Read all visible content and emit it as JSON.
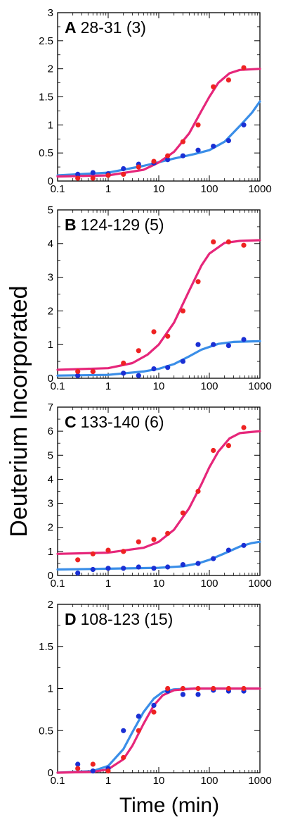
{
  "figure": {
    "ylabel": "Deuterium Incorporated",
    "xlabel": "Time (min)"
  },
  "chart_data": [
    {
      "type": "scatter",
      "panel_letter": "A",
      "panel_text": "28-31 (3)",
      "x_scale": "log",
      "xlim": [
        0.1,
        1000
      ],
      "ylim": [
        0,
        3
      ],
      "x_ticks": [
        "0.1",
        "1",
        "10",
        "100",
        "1000"
      ],
      "y_ticks": [
        "0",
        "0.5",
        "1",
        "1.5",
        "2",
        "2.5",
        "3"
      ],
      "series": [
        {
          "color": "#e6267a",
          "points": [
            [
              0.25,
              0.05
            ],
            [
              0.5,
              0.05
            ],
            [
              1,
              0.1
            ],
            [
              2,
              0.12
            ],
            [
              4,
              0.25
            ],
            [
              8,
              0.35
            ],
            [
              15,
              0.45
            ],
            [
              30,
              0.7
            ],
            [
              60,
              1.0
            ],
            [
              120,
              1.68
            ],
            [
              240,
              1.8
            ],
            [
              480,
              2.02
            ]
          ],
          "fit": [
            [
              0.1,
              0.08
            ],
            [
              1,
              0.1
            ],
            [
              5,
              0.2
            ],
            [
              10,
              0.33
            ],
            [
              20,
              0.52
            ],
            [
              40,
              0.85
            ],
            [
              70,
              1.25
            ],
            [
              100,
              1.5
            ],
            [
              150,
              1.75
            ],
            [
              250,
              1.92
            ],
            [
              400,
              1.98
            ],
            [
              1000,
              2.0
            ]
          ]
        },
        {
          "color": "#3a8ee8",
          "points": [
            [
              0.25,
              0.12
            ],
            [
              0.5,
              0.15
            ],
            [
              1,
              0.13
            ],
            [
              2,
              0.22
            ],
            [
              4,
              0.3
            ],
            [
              8,
              0.32
            ],
            [
              15,
              0.38
            ],
            [
              30,
              0.45
            ],
            [
              60,
              0.55
            ],
            [
              120,
              0.62
            ],
            [
              240,
              0.72
            ],
            [
              480,
              1.0
            ]
          ],
          "fit": [
            [
              0.1,
              0.1
            ],
            [
              1,
              0.15
            ],
            [
              5,
              0.27
            ],
            [
              20,
              0.4
            ],
            [
              50,
              0.48
            ],
            [
              100,
              0.55
            ],
            [
              200,
              0.7
            ],
            [
              400,
              0.98
            ],
            [
              700,
              1.22
            ],
            [
              1000,
              1.42
            ]
          ]
        }
      ]
    },
    {
      "type": "scatter",
      "panel_letter": "B",
      "panel_text": "124-129 (5)",
      "x_scale": "log",
      "xlim": [
        0.1,
        1000
      ],
      "ylim": [
        0,
        5
      ],
      "x_ticks": [
        "0.1",
        "1",
        "10",
        "100",
        "1000"
      ],
      "y_ticks": [
        "0",
        "1",
        "2",
        "3",
        "4",
        "5"
      ],
      "series": [
        {
          "color": "#e6267a",
          "points": [
            [
              0.25,
              0.2
            ],
            [
              0.5,
              0.2
            ],
            [
              2,
              0.45
            ],
            [
              4,
              0.82
            ],
            [
              8,
              1.38
            ],
            [
              15,
              1.25
            ],
            [
              30,
              2.0
            ],
            [
              60,
              2.87
            ],
            [
              120,
              4.05
            ],
            [
              240,
              4.05
            ],
            [
              480,
              3.95
            ]
          ],
          "fit": [
            [
              0.1,
              0.25
            ],
            [
              1,
              0.3
            ],
            [
              3,
              0.45
            ],
            [
              6,
              0.7
            ],
            [
              10,
              1.0
            ],
            [
              20,
              1.65
            ],
            [
              40,
              2.6
            ],
            [
              70,
              3.35
            ],
            [
              100,
              3.7
            ],
            [
              200,
              4.02
            ],
            [
              400,
              4.08
            ],
            [
              1000,
              4.1
            ]
          ]
        },
        {
          "color": "#3a8ee8",
          "points": [
            [
              0.25,
              0.08
            ],
            [
              0.5,
              0.2
            ],
            [
              2,
              0.15
            ],
            [
              4,
              0.08
            ],
            [
              8,
              0.28
            ],
            [
              15,
              0.32
            ],
            [
              30,
              0.5
            ],
            [
              60,
              1.0
            ],
            [
              120,
              1.0
            ],
            [
              240,
              0.97
            ],
            [
              480,
              1.15
            ]
          ],
          "fit": [
            [
              0.1,
              0.08
            ],
            [
              1,
              0.1
            ],
            [
              5,
              0.2
            ],
            [
              10,
              0.28
            ],
            [
              20,
              0.42
            ],
            [
              40,
              0.65
            ],
            [
              70,
              0.85
            ],
            [
              150,
              1.02
            ],
            [
              300,
              1.08
            ],
            [
              1000,
              1.1
            ]
          ]
        }
      ]
    },
    {
      "type": "scatter",
      "panel_letter": "C",
      "panel_text": "133-140 (6)",
      "x_scale": "log",
      "xlim": [
        0.1,
        1000
      ],
      "ylim": [
        0,
        7
      ],
      "x_ticks": [
        "0.1",
        "1",
        "10",
        "100",
        "1000"
      ],
      "y_ticks": [
        "0",
        "1",
        "2",
        "3",
        "4",
        "5",
        "6",
        "7"
      ],
      "series": [
        {
          "color": "#e6267a",
          "points": [
            [
              0.25,
              0.65
            ],
            [
              0.5,
              0.9
            ],
            [
              1,
              1.05
            ],
            [
              2,
              1.0
            ],
            [
              4,
              1.4
            ],
            [
              8,
              1.5
            ],
            [
              15,
              1.75
            ],
            [
              30,
              2.6
            ],
            [
              60,
              3.5
            ],
            [
              120,
              5.2
            ],
            [
              240,
              5.4
            ],
            [
              480,
              6.15
            ]
          ],
          "fit": [
            [
              0.1,
              0.9
            ],
            [
              1,
              0.95
            ],
            [
              5,
              1.15
            ],
            [
              10,
              1.4
            ],
            [
              20,
              1.9
            ],
            [
              40,
              2.8
            ],
            [
              70,
              3.8
            ],
            [
              100,
              4.5
            ],
            [
              150,
              5.15
            ],
            [
              250,
              5.7
            ],
            [
              400,
              5.92
            ],
            [
              1000,
              6.0
            ]
          ]
        },
        {
          "color": "#3a8ee8",
          "points": [
            [
              0.25,
              0.1
            ],
            [
              0.5,
              0.25
            ],
            [
              1,
              0.3
            ],
            [
              2,
              0.3
            ],
            [
              4,
              0.35
            ],
            [
              8,
              0.3
            ],
            [
              15,
              0.35
            ],
            [
              30,
              0.45
            ],
            [
              60,
              0.5
            ],
            [
              120,
              0.7
            ],
            [
              240,
              1.05
            ],
            [
              480,
              1.25
            ]
          ],
          "fit": [
            [
              0.1,
              0.25
            ],
            [
              1,
              0.28
            ],
            [
              10,
              0.32
            ],
            [
              30,
              0.38
            ],
            [
              60,
              0.5
            ],
            [
              100,
              0.65
            ],
            [
              200,
              0.92
            ],
            [
              400,
              1.2
            ],
            [
              700,
              1.35
            ],
            [
              1000,
              1.4
            ]
          ]
        }
      ]
    },
    {
      "type": "scatter",
      "panel_letter": "D",
      "panel_text": "108-123 (15)",
      "x_scale": "log",
      "xlim": [
        0.1,
        1000
      ],
      "ylim": [
        0,
        2
      ],
      "x_ticks": [
        "0.1",
        "1",
        "10",
        "100",
        "1000"
      ],
      "y_ticks": [
        "0",
        "0.5",
        "1",
        "1.5",
        "2"
      ],
      "series": [
        {
          "color": "#e6267a",
          "points": [
            [
              0.25,
              0.05
            ],
            [
              0.5,
              0.1
            ],
            [
              1,
              0.02
            ],
            [
              2,
              0.18
            ],
            [
              4,
              0.5
            ],
            [
              8,
              0.72
            ],
            [
              15,
              1.0
            ],
            [
              30,
              1.0
            ],
            [
              60,
              1.0
            ],
            [
              120,
              1.0
            ],
            [
              240,
              1.0
            ],
            [
              480,
              1.0
            ]
          ],
          "fit": [
            [
              0.1,
              0.0
            ],
            [
              0.5,
              0.01
            ],
            [
              1,
              0.04
            ],
            [
              2,
              0.16
            ],
            [
              3,
              0.32
            ],
            [
              5,
              0.58
            ],
            [
              8,
              0.8
            ],
            [
              12,
              0.92
            ],
            [
              20,
              0.98
            ],
            [
              50,
              1.0
            ],
            [
              1000,
              1.0
            ]
          ]
        },
        {
          "color": "#3a8ee8",
          "points": [
            [
              0.25,
              0.1
            ],
            [
              0.5,
              0.02
            ],
            [
              1,
              0.05
            ],
            [
              2,
              0.5
            ],
            [
              4,
              0.67
            ],
            [
              8,
              0.8
            ],
            [
              15,
              0.97
            ],
            [
              30,
              0.93
            ],
            [
              60,
              0.93
            ],
            [
              120,
              0.98
            ],
            [
              240,
              0.97
            ],
            [
              480,
              0.97
            ]
          ],
          "fit": [
            [
              0.1,
              0.0
            ],
            [
              0.5,
              0.02
            ],
            [
              1,
              0.08
            ],
            [
              2,
              0.28
            ],
            [
              3,
              0.48
            ],
            [
              5,
              0.72
            ],
            [
              8,
              0.88
            ],
            [
              12,
              0.96
            ],
            [
              20,
              0.99
            ],
            [
              50,
              1.0
            ],
            [
              1000,
              1.0
            ]
          ]
        }
      ]
    }
  ]
}
